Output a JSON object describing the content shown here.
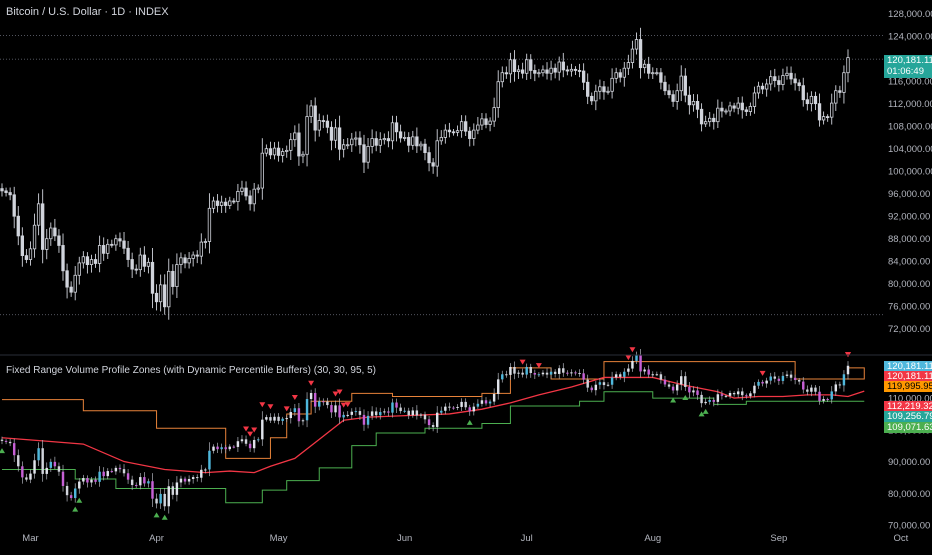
{
  "main_title": "Bitcoin / U.S. Dollar · 1D · INDEX",
  "indicator_title": "Fixed Range Volume Profile Zones (with Dynamic Percentile Buffers) (30, 30, 95, 5)",
  "price_tag": {
    "value": "120,181.11",
    "countdown": "01:06:49",
    "color": "#26a69a"
  },
  "indicator_tags": [
    {
      "value": "120,181.11",
      "color": "#4fb8dc"
    },
    {
      "value": "120,181.11",
      "color": "#f23645"
    },
    {
      "value": "119,995.95",
      "color": "#ff9800"
    },
    {
      "value": "112,219.32",
      "color": "#f23645"
    },
    {
      "value": "109,256.79",
      "color": "#26a69a"
    },
    {
      "value": "109,071.63",
      "color": "#4caf50"
    }
  ],
  "colors": {
    "candle": "#d1d4dc",
    "upper_band": "#e8833a",
    "mid_band": "#f23645",
    "lower_band": "#4caf50",
    "sell_marker": "#f23645",
    "buy_marker": "#4caf50",
    "candle_up": "#4fb8dc",
    "candle_down": "#c660d6"
  },
  "chart_data": [
    {
      "type": "candlestick",
      "title": "Bitcoin / U.S. Dollar · 1D · INDEX",
      "y_ticks": [
        "128,000.00",
        "124,000.00",
        "120,000.00",
        "116,000.00",
        "112,000.00",
        "108,000.00",
        "104,000.00",
        "100,000.00",
        "96,000.00",
        "92,000.00",
        "88,000.00",
        "84,000.00",
        "80,000.00",
        "76,000.00",
        "72,000.00"
      ],
      "ylim": [
        70000,
        129000
      ],
      "x_ticks": [
        "Mar",
        "Apr",
        "May",
        "Jun",
        "Jul",
        "Aug",
        "Sep",
        "Oct"
      ],
      "reference_lines": [
        124100,
        119900,
        74500
      ],
      "x_start": "2025-02-22",
      "x_end": "2025-10-02",
      "close_series": [
        96500,
        96200,
        95800,
        92000,
        88500,
        85000,
        84300,
        86200,
        90400,
        94200,
        86100,
        88000,
        89900,
        88500,
        86800,
        82300,
        79400,
        78500,
        81500,
        83700,
        84800,
        83400,
        84300,
        83600,
        86800,
        85400,
        87000,
        86900,
        88000,
        87600,
        86300,
        84300,
        82600,
        82500,
        85100,
        83100,
        83800,
        78300,
        76800,
        79800,
        75900,
        82200,
        79500,
        83400,
        84600,
        83700,
        84500,
        85100,
        84900,
        87400,
        87500,
        93400,
        94700,
        93900,
        94500,
        93900,
        94700,
        94600,
        96400,
        97000,
        95600,
        94200,
        96800,
        97000,
        103200,
        104000,
        102900,
        104100,
        102800,
        103500,
        103700,
        105600,
        106800,
        102700,
        103000,
        109700,
        111600,
        107300,
        109000,
        108900,
        107800,
        105500,
        107700,
        103900,
        104700,
        104700,
        105700,
        105900,
        104700,
        101600,
        104400,
        105800,
        104600,
        105600,
        105800,
        105400,
        108600,
        107000,
        105900,
        106000,
        104600,
        106100,
        104500,
        104800,
        103300,
        101500,
        100900,
        105400,
        106000,
        107300,
        107000,
        106900,
        107200,
        108800,
        107100,
        105800,
        107300,
        108200,
        109300,
        108300,
        108900,
        111300,
        115900,
        117500,
        117300,
        119800,
        117700,
        118000,
        117400,
        119800,
        117900,
        117400,
        117500,
        118000,
        117400,
        118300,
        117600,
        119400,
        118000,
        117800,
        118100,
        117900,
        117800,
        115800,
        113300,
        112500,
        114200,
        115000,
        114100,
        114200,
        116500,
        117500,
        116700,
        118300,
        119300,
        121700,
        123400,
        118400,
        119000,
        117400,
        117500,
        117500,
        115800,
        114300,
        113600,
        112400,
        114300,
        116900,
        113500,
        111800,
        112400,
        111000,
        108400,
        108800,
        109400,
        108800,
        111200,
        110700,
        110700,
        111600,
        111200,
        112100,
        110900,
        110600,
        111500,
        113900,
        115100,
        114600,
        115500,
        116800,
        116100,
        115400,
        117000,
        117400,
        116400,
        115700,
        115200,
        112700,
        112000,
        113300,
        112000,
        109100,
        109700,
        109600,
        112100,
        114300,
        114000,
        117500,
        120181
      ]
    },
    {
      "type": "line",
      "title": "Fixed Range Volume Profile Zones (with Dynamic Percentile Buffers) (30, 30, 95, 5)",
      "y_ticks": [
        "110,000.00",
        "100,000.00",
        "90,000.00",
        "80,000.00",
        "70,000.00"
      ],
      "ylim": [
        70000,
        122000
      ],
      "series_upper_steps": [
        [
          0,
          109500
        ],
        [
          20,
          106000
        ],
        [
          38,
          100500
        ],
        [
          55,
          91000
        ],
        [
          66,
          97500
        ],
        [
          70,
          105000
        ],
        [
          76,
          109000
        ],
        [
          86,
          111500
        ],
        [
          96,
          110500
        ],
        [
          118,
          111500
        ],
        [
          125,
          119500
        ],
        [
          135,
          116000
        ],
        [
          148,
          121500
        ],
        [
          185,
          121500
        ],
        [
          195,
          116000
        ],
        [
          212,
          119500
        ]
      ],
      "series_mid": [
        [
          0,
          97500
        ],
        [
          10,
          96500
        ],
        [
          20,
          95500
        ],
        [
          30,
          90000
        ],
        [
          40,
          87500
        ],
        [
          50,
          86500
        ],
        [
          56,
          87000
        ],
        [
          62,
          86500
        ],
        [
          66,
          88500
        ],
        [
          72,
          91000
        ],
        [
          78,
          97000
        ],
        [
          84,
          103000
        ],
        [
          90,
          104000
        ],
        [
          100,
          104500
        ],
        [
          110,
          105000
        ],
        [
          118,
          106500
        ],
        [
          125,
          108500
        ],
        [
          132,
          111000
        ],
        [
          140,
          113500
        ],
        [
          148,
          116500
        ],
        [
          160,
          116500
        ],
        [
          168,
          114000
        ],
        [
          176,
          112000
        ],
        [
          180,
          110000
        ],
        [
          186,
          110500
        ],
        [
          192,
          110500
        ],
        [
          198,
          111000
        ],
        [
          204,
          111000
        ],
        [
          208,
          110500
        ],
        [
          212,
          112200
        ]
      ],
      "series_lower_steps": [
        [
          0,
          87500
        ],
        [
          18,
          84500
        ],
        [
          28,
          81500
        ],
        [
          55,
          77000
        ],
        [
          64,
          81000
        ],
        [
          70,
          84000
        ],
        [
          78,
          88000
        ],
        [
          86,
          95000
        ],
        [
          92,
          99000
        ],
        [
          104,
          100500
        ],
        [
          118,
          102000
        ],
        [
          125,
          107500
        ],
        [
          142,
          109000
        ],
        [
          148,
          112000
        ],
        [
          160,
          110000
        ],
        [
          175,
          108000
        ],
        [
          183,
          109000
        ],
        [
          212,
          109000
        ]
      ],
      "sell_markers": [
        60,
        61,
        62,
        64,
        66,
        70,
        72,
        76,
        82,
        83,
        84,
        85,
        128,
        132,
        154,
        155,
        187,
        210,
        211
      ],
      "buy_markers": [
        0,
        18,
        19,
        38,
        40,
        115,
        165,
        168,
        172,
        173
      ]
    }
  ]
}
